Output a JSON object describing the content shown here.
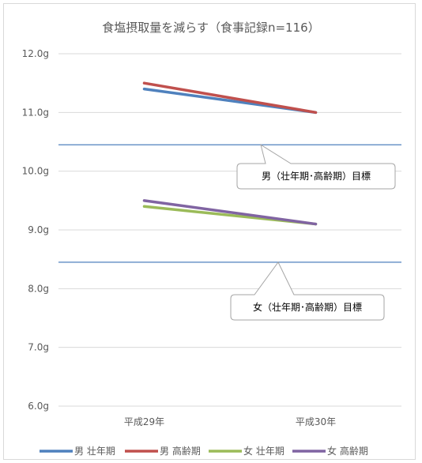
{
  "chart_data": {
    "type": "line",
    "title": "食塩摂取量を減らす（食事記録n=116）",
    "categories": [
      "平成29年",
      "平成30年"
    ],
    "y_ticks": [
      "6.0g",
      "7.0g",
      "8.0g",
      "9.0g",
      "10.0g",
      "11.0g",
      "12.0g"
    ],
    "ylim": [
      6.0,
      12.0
    ],
    "grid": true,
    "legend_position": "bottom",
    "series": [
      {
        "name": "男 壮年期",
        "values": [
          11.4,
          11.0
        ],
        "color": "#4f81bd"
      },
      {
        "name": "男 高齢期",
        "values": [
          11.5,
          11.0
        ],
        "color": "#c0504d"
      },
      {
        "name": "女 壮年期",
        "values": [
          9.4,
          9.1
        ],
        "color": "#9bbb59"
      },
      {
        "name": "女 高齢期",
        "values": [
          9.5,
          9.1
        ],
        "color": "#8064a2"
      }
    ],
    "target_lines": [
      {
        "value": 10.45,
        "color": "#4f81bd",
        "label": "男（壮年期･高齢期）目標"
      },
      {
        "value": 8.45,
        "color": "#4f81bd",
        "label": "女（壮年期･高齢期）目標"
      }
    ]
  }
}
